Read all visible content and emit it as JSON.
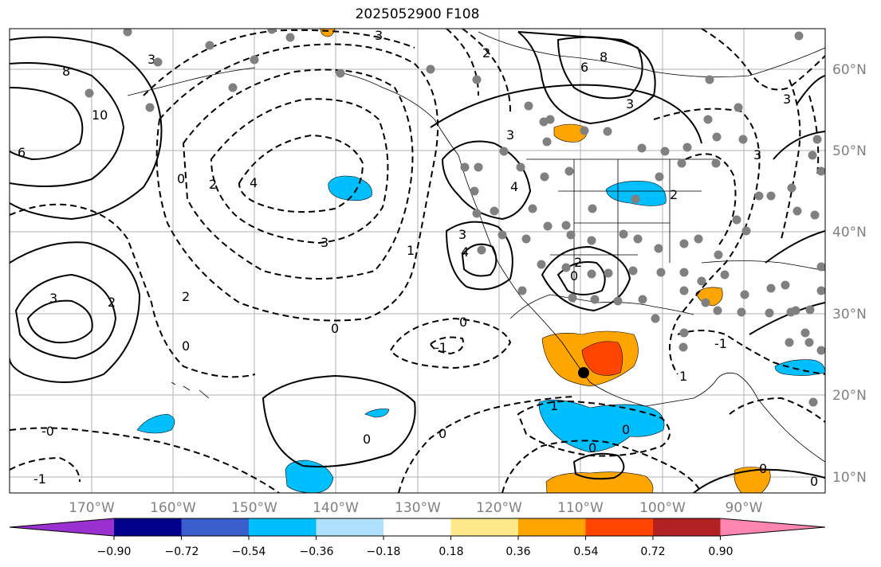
{
  "title": "2025052900 F108",
  "longitude_labels": [
    "170°W",
    "160°W",
    "150°W",
    "140°W",
    "130°W",
    "120°W",
    "110°W",
    "100°W",
    "90°W"
  ],
  "latitude_labels": [
    "60°N",
    "50°N",
    "40°N",
    "30°N",
    "20°N",
    "10°N"
  ],
  "colorbar": {
    "tick_labels": [
      "−0.90",
      "−0.72",
      "−0.54",
      "−0.36",
      "−0.18",
      "0.18",
      "0.36",
      "0.54",
      "0.72",
      "0.90"
    ],
    "colors": [
      "#9b30d0",
      "#00008b",
      "#3a5fcd",
      "#00bfff",
      "#b0e2ff",
      "#ffffff",
      "#ffe98a",
      "#ffa500",
      "#ff4500",
      "#b22222",
      "#ff86b0"
    ]
  },
  "contour_labels": [
    "3",
    "3",
    "2",
    "8",
    "8",
    "6",
    "10",
    "6",
    "3",
    "3",
    "4",
    "0",
    "2",
    "4",
    "3",
    "3",
    "4",
    "3",
    "2",
    "2",
    "0",
    "-1",
    "0",
    "0",
    "3",
    "2",
    "0",
    "1",
    "2",
    "3",
    "0",
    "0",
    "-0",
    "-1",
    "0",
    "1",
    "-1",
    "0",
    "1",
    "0",
    "0"
  ],
  "colors": {
    "positive_contour": "#000000",
    "negative_contour": "#000000",
    "stations": "#808080",
    "grid": "#b0b0b0",
    "coast": "#000000"
  }
}
